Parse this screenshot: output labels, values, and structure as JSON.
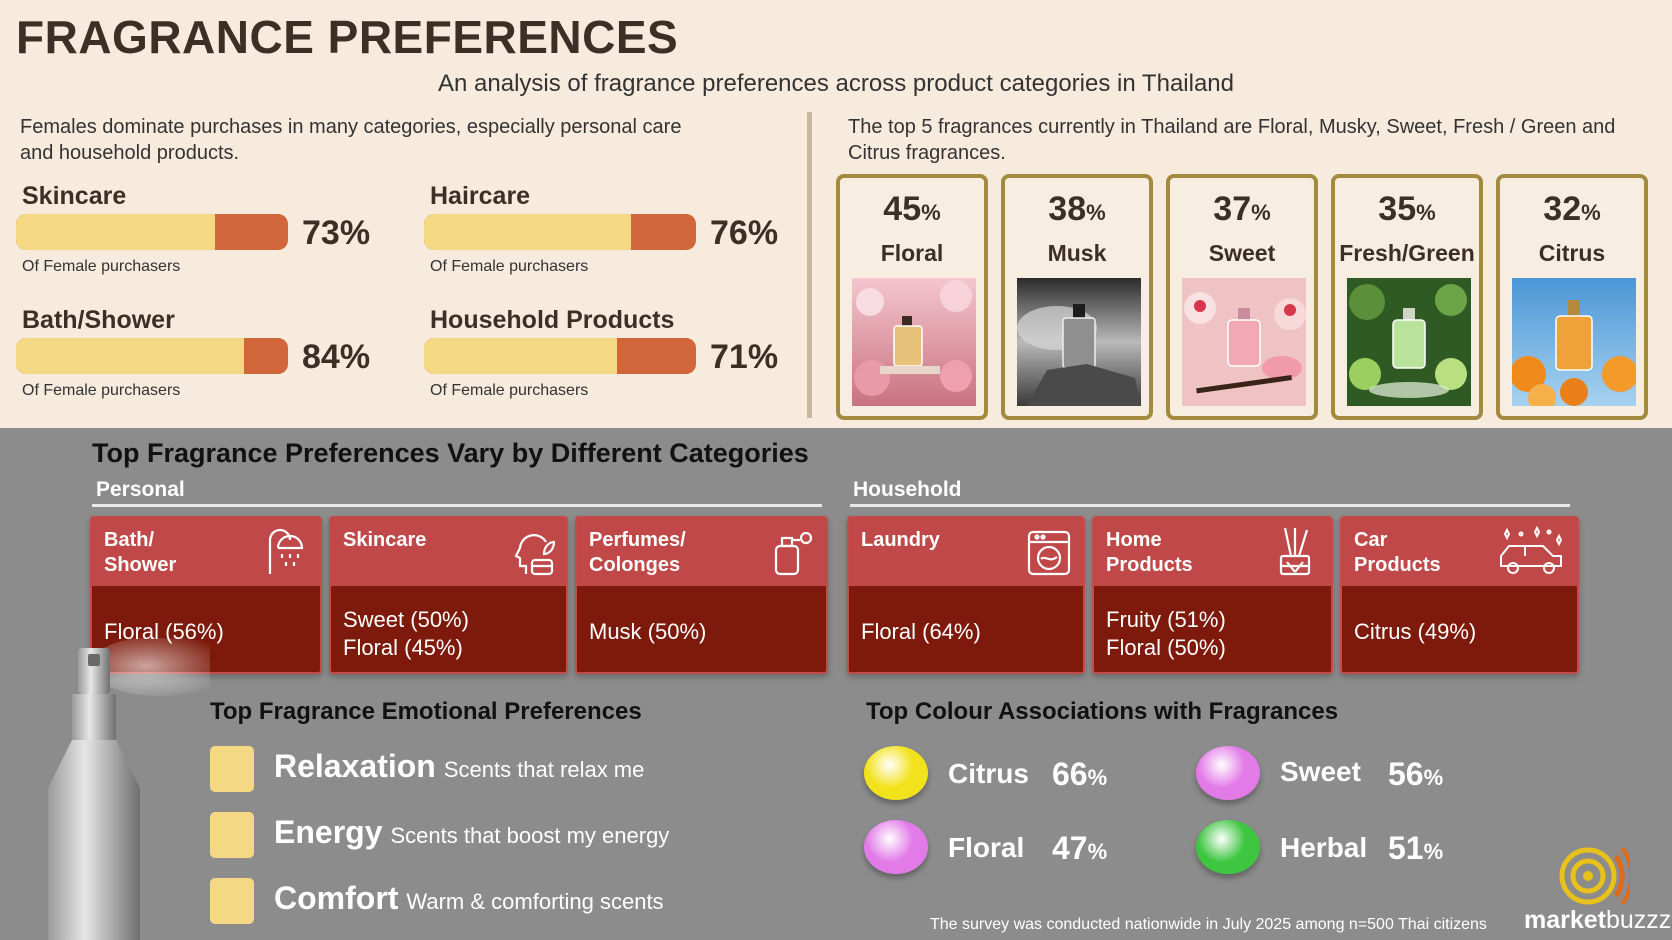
{
  "title": "FRAGRANCE PREFERENCES",
  "subtitle": "An analysis of fragrance preferences across product categories in Thailand",
  "intro_left": "Females dominate purchases in many categories, especially personal care and household products.",
  "intro_right": "The top 5 fragrances currently in Thailand are Floral, Musky, Sweet, Fresh / Green and Citrus fragrances.",
  "female_note": "Of Female purchasers",
  "colors": {
    "bar_fill": "#f5d883",
    "bar_track": "#d2663b",
    "card_border": "#a38a3e",
    "card_head": "#c14848",
    "card_body": "#7d1a0b"
  },
  "chart_data": [
    {
      "type": "bar",
      "categories": [
        "Skincare",
        "Haircare",
        "Bath/Shower",
        "Household Products"
      ],
      "values": [
        73,
        76,
        84,
        71
      ],
      "labels": [
        "73%",
        "76%",
        "84%",
        "71%"
      ],
      "ylim": [
        0,
        100
      ]
    },
    {
      "type": "table",
      "categories": [
        "Floral",
        "Musk",
        "Sweet",
        "Fresh/Green",
        "Citrus"
      ],
      "values": [
        45,
        38,
        37,
        35,
        32
      ]
    },
    {
      "type": "table",
      "categories": [
        "Citrus",
        "Sweet",
        "Floral",
        "Herbal"
      ],
      "values": [
        66,
        56,
        47,
        51
      ],
      "colors": [
        "#f2e21b",
        "#e27ae8",
        "#e27ae8",
        "#3fc640"
      ]
    }
  ],
  "fragrance_cards": [
    {
      "num": "45",
      "sym": "%",
      "name": "Floral"
    },
    {
      "num": "38",
      "sym": "%",
      "name": "Musk"
    },
    {
      "num": "37",
      "sym": "%",
      "name": "Sweet"
    },
    {
      "num": "35",
      "sym": "%",
      "name": "Fresh/Green"
    },
    {
      "num": "32",
      "sym": "%",
      "name": "Citrus"
    }
  ],
  "categories_section": {
    "title": "Top Fragrance Preferences Vary by Different Categories",
    "personal_label": "Personal",
    "household_label": "Household",
    "cards": [
      {
        "title": "Bath/\nShower",
        "lines": [
          "Floral (56%)"
        ],
        "icon": "shower-icon"
      },
      {
        "title": "Skincare",
        "lines": [
          "Sweet (50%)",
          "Floral (45%)"
        ],
        "icon": "face-care-icon"
      },
      {
        "title": "Perfumes/\nColonges",
        "lines": [
          "Musk (50%)"
        ],
        "icon": "perfume-bottle-icon"
      },
      {
        "title": "Laundry",
        "lines": [
          "Floral (64%)"
        ],
        "icon": "washing-machine-icon"
      },
      {
        "title": "Home\nProducts",
        "lines": [
          "Fruity (51%)",
          "Floral (50%)"
        ],
        "icon": "reed-diffuser-icon"
      },
      {
        "title": "Car\nProducts",
        "lines": [
          "Citrus (49%)"
        ],
        "icon": "car-sparkle-icon"
      }
    ]
  },
  "emotional": {
    "title": "Top Fragrance Emotional Preferences",
    "items": [
      {
        "label": "Relaxation",
        "desc": "Scents that relax me"
      },
      {
        "label": "Energy",
        "desc": "Scents that boost my energy"
      },
      {
        "label": "Comfort",
        "desc": "Warm & comforting scents"
      }
    ]
  },
  "colour_assoc": {
    "title": "Top Colour Associations with Fragrances",
    "items": [
      {
        "name": "Citrus",
        "num": "66",
        "sym": "%"
      },
      {
        "name": "Sweet",
        "num": "56",
        "sym": "%"
      },
      {
        "name": "Floral",
        "num": "47",
        "sym": "%"
      },
      {
        "name": "Herbal",
        "num": "51",
        "sym": "%"
      }
    ]
  },
  "footnote": "The survey was conducted nationwide in July 2025 among n=500 Thai citizens",
  "logo": {
    "bold": "market",
    "light": "buzzz"
  }
}
